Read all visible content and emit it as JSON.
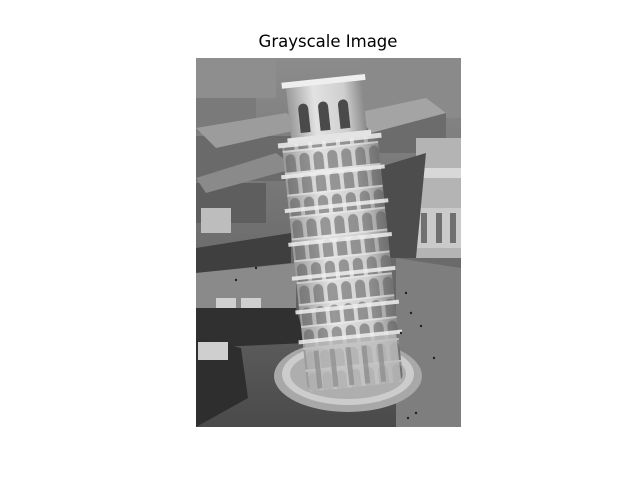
{
  "figure": {
    "title": "Grayscale Image"
  },
  "image": {
    "colormap": "gray",
    "subject": "tower",
    "axis_visible": false
  }
}
